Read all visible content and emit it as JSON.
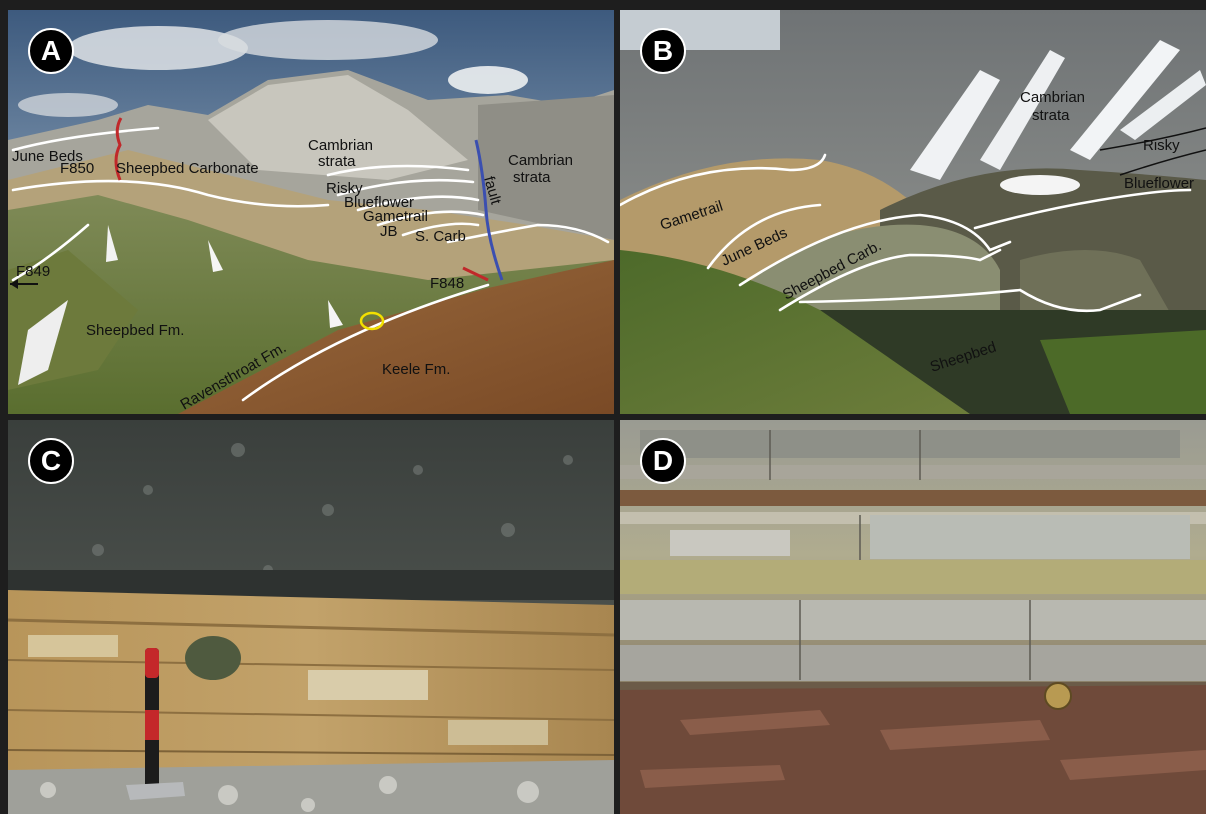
{
  "panels": {
    "a": {
      "letter": "A",
      "labels": {
        "june_beds": "June Beds",
        "f850": "F850",
        "sheepbed_carbonate": "Sheepbed Carbonate",
        "cambrian_strata_1_l1": "Cambrian",
        "cambrian_strata_1_l2": "strata",
        "cambrian_strata_2_l1": "Cambrian",
        "cambrian_strata_2_l2": "strata",
        "risky": "Risky",
        "blueflower": "Blueflower",
        "gametrail": "Gametrail",
        "jb": "JB",
        "s_carb": "S. Carb",
        "fault": "fault",
        "f849": "F849",
        "f848": "F848",
        "sheepbed_fm": "Sheepbed Fm.",
        "ravensthroat_fm": "Ravensthroat Fm.",
        "keele_fm": "Keele Fm."
      }
    },
    "b": {
      "letter": "B",
      "labels": {
        "cambrian_l1": "Cambrian",
        "cambrian_l2": "strata",
        "risky": "Risky",
        "blueflower": "Blueflower",
        "gametrail": "Gametrail",
        "june_beds": "June Beds",
        "sheepbed_carb": "Sheepbed Carb.",
        "sheepbed": "Sheepbed"
      }
    },
    "c": {
      "letter": "C"
    },
    "d": {
      "letter": "D"
    }
  },
  "colors": {
    "fault": "#3b4fb0",
    "section_marker": "#c0282a",
    "highlight_circle": "#f2e000",
    "contact_lines": "#ffffff"
  }
}
